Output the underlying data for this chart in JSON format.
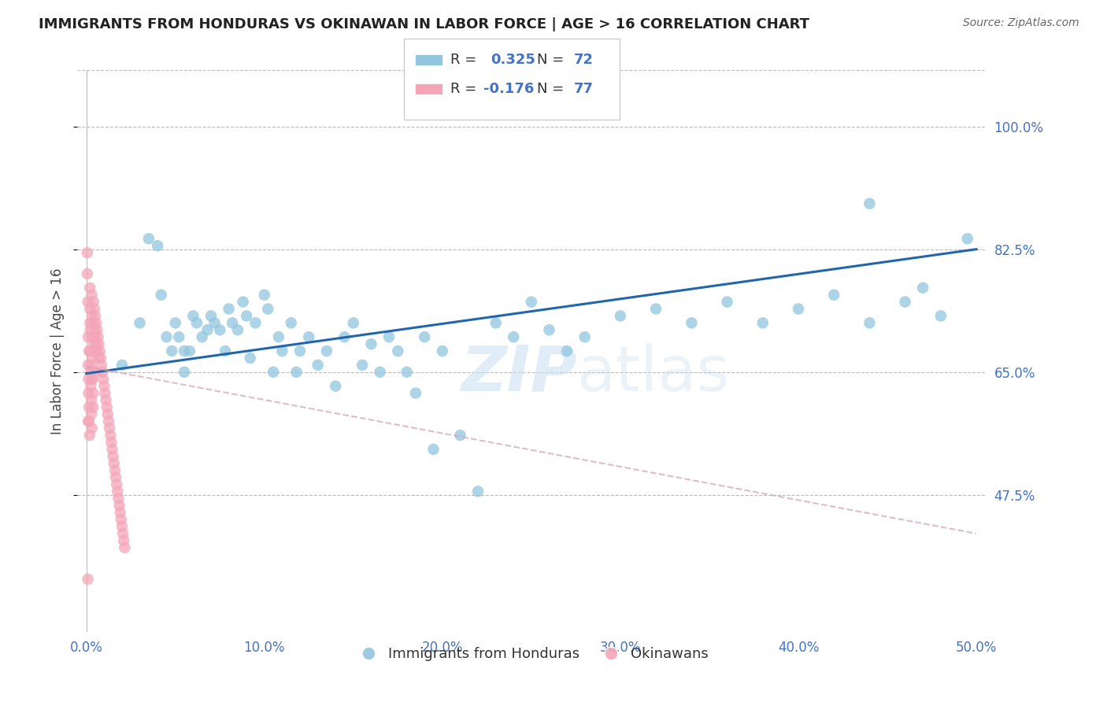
{
  "title": "IMMIGRANTS FROM HONDURAS VS OKINAWAN IN LABOR FORCE | AGE > 16 CORRELATION CHART",
  "source": "Source: ZipAtlas.com",
  "ylabel": "In Labor Force | Age > 16",
  "xlim": [
    -0.005,
    0.505
  ],
  "ylim": [
    0.28,
    1.08
  ],
  "yticks": [
    0.475,
    0.65,
    0.825,
    1.0
  ],
  "ytick_labels": [
    "47.5%",
    "65.0%",
    "82.5%",
    "100.0%"
  ],
  "xticks": [
    0.0,
    0.1,
    0.2,
    0.3,
    0.4,
    0.5
  ],
  "xtick_labels": [
    "0.0%",
    "10.0%",
    "20.0%",
    "30.0%",
    "40.0%",
    "50.0%"
  ],
  "blue_color": "#92c5de",
  "pink_color": "#f4a6b8",
  "trend_blue": "#2166ac",
  "trend_pink": "#d4a0b0",
  "background": "#ffffff",
  "grid_color": "#bbbbbb",
  "label_color_right": "#4472C4",
  "watermark_color": "#c8dff0",
  "honduras_x": [
    0.02,
    0.03,
    0.035,
    0.04,
    0.042,
    0.045,
    0.048,
    0.05,
    0.052,
    0.055,
    0.055,
    0.058,
    0.06,
    0.062,
    0.065,
    0.068,
    0.07,
    0.072,
    0.075,
    0.078,
    0.08,
    0.082,
    0.085,
    0.088,
    0.09,
    0.092,
    0.095,
    0.1,
    0.102,
    0.105,
    0.108,
    0.11,
    0.115,
    0.118,
    0.12,
    0.125,
    0.13,
    0.135,
    0.14,
    0.145,
    0.15,
    0.155,
    0.16,
    0.165,
    0.17,
    0.175,
    0.18,
    0.185,
    0.19,
    0.195,
    0.2,
    0.21,
    0.22,
    0.23,
    0.24,
    0.25,
    0.26,
    0.27,
    0.28,
    0.3,
    0.32,
    0.34,
    0.36,
    0.38,
    0.4,
    0.42,
    0.44,
    0.46,
    0.48,
    0.495,
    0.44,
    0.47
  ],
  "honduras_y": [
    0.66,
    0.72,
    0.84,
    0.83,
    0.76,
    0.7,
    0.68,
    0.72,
    0.7,
    0.68,
    0.65,
    0.68,
    0.73,
    0.72,
    0.7,
    0.71,
    0.73,
    0.72,
    0.71,
    0.68,
    0.74,
    0.72,
    0.71,
    0.75,
    0.73,
    0.67,
    0.72,
    0.76,
    0.74,
    0.65,
    0.7,
    0.68,
    0.72,
    0.65,
    0.68,
    0.7,
    0.66,
    0.68,
    0.63,
    0.7,
    0.72,
    0.66,
    0.69,
    0.65,
    0.7,
    0.68,
    0.65,
    0.62,
    0.7,
    0.54,
    0.68,
    0.56,
    0.48,
    0.72,
    0.7,
    0.75,
    0.71,
    0.68,
    0.7,
    0.73,
    0.74,
    0.72,
    0.75,
    0.72,
    0.74,
    0.76,
    0.72,
    0.75,
    0.73,
    0.84,
    0.89,
    0.77
  ],
  "okinawan_x": [
    0.0005,
    0.0008,
    0.001,
    0.001,
    0.0012,
    0.0012,
    0.0015,
    0.0015,
    0.0018,
    0.002,
    0.002,
    0.0022,
    0.0022,
    0.0025,
    0.0025,
    0.0028,
    0.0028,
    0.003,
    0.003,
    0.0032,
    0.0032,
    0.0035,
    0.0035,
    0.0038,
    0.0038,
    0.004,
    0.004,
    0.0042,
    0.0045,
    0.0045,
    0.0048,
    0.0048,
    0.005,
    0.005,
    0.0055,
    0.0055,
    0.006,
    0.006,
    0.0065,
    0.007,
    0.007,
    0.0075,
    0.008,
    0.0085,
    0.009,
    0.0095,
    0.01,
    0.0105,
    0.011,
    0.0115,
    0.012,
    0.0125,
    0.013,
    0.0135,
    0.014,
    0.0145,
    0.015,
    0.0155,
    0.016,
    0.0165,
    0.017,
    0.0175,
    0.018,
    0.0185,
    0.019,
    0.0195,
    0.02,
    0.0205,
    0.021,
    0.0215,
    0.0005,
    0.001,
    0.0015,
    0.002,
    0.0025,
    0.003,
    0.0008
  ],
  "okinawan_y": [
    0.79,
    0.75,
    0.7,
    0.66,
    0.64,
    0.62,
    0.6,
    0.58,
    0.56,
    0.77,
    0.74,
    0.71,
    0.68,
    0.65,
    0.63,
    0.61,
    0.59,
    0.57,
    0.76,
    0.73,
    0.7,
    0.67,
    0.64,
    0.62,
    0.6,
    0.75,
    0.72,
    0.69,
    0.74,
    0.71,
    0.68,
    0.65,
    0.73,
    0.7,
    0.72,
    0.69,
    0.71,
    0.68,
    0.7,
    0.69,
    0.67,
    0.68,
    0.67,
    0.66,
    0.65,
    0.64,
    0.63,
    0.62,
    0.61,
    0.6,
    0.59,
    0.58,
    0.57,
    0.56,
    0.55,
    0.54,
    0.53,
    0.52,
    0.51,
    0.5,
    0.49,
    0.48,
    0.47,
    0.46,
    0.45,
    0.44,
    0.43,
    0.42,
    0.41,
    0.4,
    0.82,
    0.58,
    0.68,
    0.72,
    0.66,
    0.64,
    0.355
  ],
  "blue_trend_x0": 0.0,
  "blue_trend_y0": 0.648,
  "blue_trend_x1": 0.5,
  "blue_trend_y1": 0.825,
  "pink_trend_x0": 0.0,
  "pink_trend_y0": 0.658,
  "pink_trend_x1": 0.5,
  "pink_trend_y1": 0.42
}
